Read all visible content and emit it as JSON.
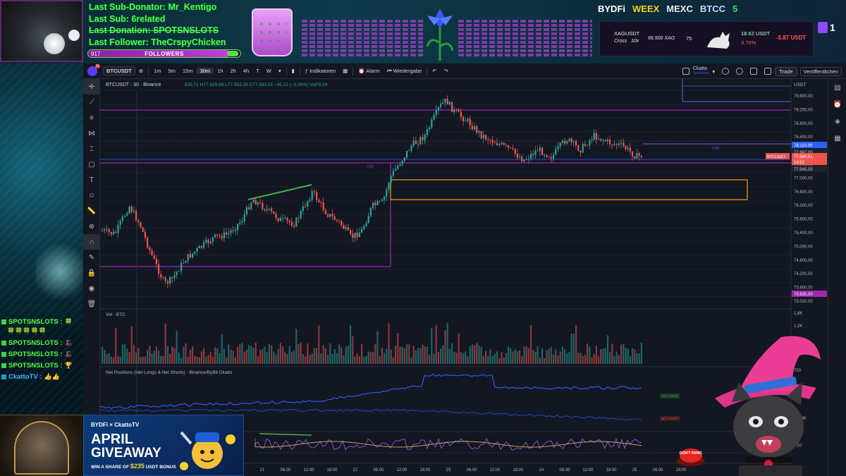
{
  "overlay": {
    "alerts": {
      "sub_donator": "Last Sub-Donator: Mr_Kentigo",
      "sub": "Last Sub: 6related",
      "donation": "Last Donation: SPOTSNSLOTS",
      "follower": "Last Follower: TheCrspyChicken"
    },
    "followers": {
      "count": "917",
      "label": "FOLLOWERS",
      "progress": 0.92
    },
    "brands": [
      "BYDFi",
      "WEEX",
      "MEXC",
      "BTCC",
      "5"
    ],
    "ticker": {
      "symbol": "XAGUSDT",
      "mode": "Cross",
      "leverage": "10x",
      "amount": "66.500 XAG",
      "value": "75",
      "pnl": "18.62 USDT",
      "pct": "3.70%",
      "total": "-5.87 USDT"
    },
    "twitch_count": "1"
  },
  "chat": [
    {
      "user": "SPOTSNSLOTS :",
      "emote": "🍀"
    },
    {
      "user": "",
      "emote": "🍀🍀🍀🍀🍀"
    },
    {
      "user": "SPOTSNSLOTS :",
      "emote": "🎩"
    },
    {
      "user": "SPOTSNSLOTS :",
      "emote": "🎩"
    },
    {
      "user": "SPOTSNSLOTS :",
      "emote": "🏆"
    },
    {
      "user": "CkattoTV :",
      "emote": "👍👍"
    }
  ],
  "tv": {
    "toolbar": {
      "symbol": "BTCUSDT",
      "intervals": [
        "1m",
        "5m",
        "15m",
        "30m",
        "1h",
        "2h",
        "4h",
        "T",
        "W"
      ],
      "active_interval": "30m",
      "indicators": "Indikatoren",
      "alert": "Alarm",
      "replay": "Wiedergabe",
      "account": "Ckatto",
      "saved": "Speichern",
      "trade": "Trade",
      "publish": "Veröffentlichen"
    },
    "legend": {
      "title": "BTCUSDT · 30 · Binance",
      "ohlc": "625,71 H77.629,68 L77.553,28 C77.580,51 −45,21 (−0,06%) Vol79,34"
    },
    "volume_label": "Vol · BTC",
    "net_positions_label": "Net Positions (Net Longs & Net Shorts) · Binance/ByBit Ckatto",
    "price_axis": {
      "currency": "USDT",
      "ticks": [
        "79.600,00",
        "79.200,00",
        "78.800,00",
        "78.400,00",
        "78.000,00",
        "77.600,00",
        "77.000,00",
        "76.600,00",
        "76.200,00",
        "75.800,00",
        "75.400,00",
        "75.000,00",
        "74.600,00",
        "74.200,00",
        "73.800,00",
        "73.210,00"
      ],
      "tags": {
        "level_a": "78.110,00",
        "level_b": "77.667,00",
        "last_symbol": "BTCUSDT",
        "last_price": "77.580,51",
        "countdown": "14:52",
        "level_c": "77.545,00",
        "level_d": "73.630,00"
      }
    },
    "volume_axis": [
      "1,2K",
      "1,6K",
      "900"
    ],
    "net_axis": [
      "750",
      "-6,49K",
      "7,07"
    ],
    "time_axis": [
      "21",
      "06:00",
      "12:00",
      "18:00",
      "22",
      "06:00",
      "12:00",
      "18:00",
      "23",
      "06:00",
      "12:00",
      "18:00",
      "24",
      "06:00",
      "12:00",
      "18:00",
      "25",
      "06:00",
      "18:00"
    ],
    "tiny_labels": {
      "net_longs": "NET LONGS",
      "net_shorts": "NET SHORTS",
      "chk": "CHK"
    }
  },
  "giveaway": {
    "brand": "BYDFi × CkattoTV",
    "title1": "APRIL",
    "title2": "GIVEAWAY",
    "sub_prefix": "WIN A SHARE OF",
    "amount": "$235",
    "sub_suffix": "USDT BONUS"
  },
  "panic_label": "DON'T PANIC",
  "colors": {
    "up": "#26a69a",
    "down": "#ef5350",
    "purple": "#9c27b0",
    "orange": "#ff9800",
    "blue": "#2962ff",
    "accent_green": "#4dff4a"
  }
}
